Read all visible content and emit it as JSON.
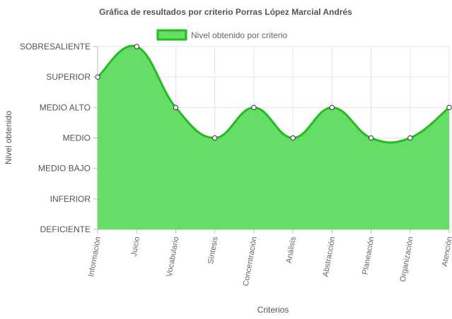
{
  "chart_data": {
    "type": "area",
    "title": "Gráfica de resultados por criterio Porras López Marcial Andrés",
    "xlabel": "Criterios",
    "ylabel": "Nivel obtenido",
    "y_levels": [
      "DEFICIENTE",
      "INFERIOR",
      "MEDIO BAJO",
      "MEDIO",
      "MEDIO ALTO",
      "SUPERIOR",
      "SOBRESALIENTE"
    ],
    "ylim": [
      0,
      6
    ],
    "categories": [
      "Información",
      "Juicio",
      "Vocabulario",
      "Síntesis",
      "Concentración",
      "Análisis",
      "Abstracción",
      "Planeación",
      "Organización",
      "Atención"
    ],
    "series": [
      {
        "name": "Nivel obtenido por criterio",
        "values": [
          5,
          6,
          4,
          3,
          4,
          3,
          4,
          3,
          3,
          4
        ]
      }
    ],
    "grid": true,
    "legend_position": "top",
    "colors": {
      "fill": "#66dd66",
      "line": "#22bb22",
      "point_fill": "#ffffff",
      "point_stroke": "#333333",
      "grid": "#e3e3e3",
      "axis": "#bbbbbb"
    }
  }
}
